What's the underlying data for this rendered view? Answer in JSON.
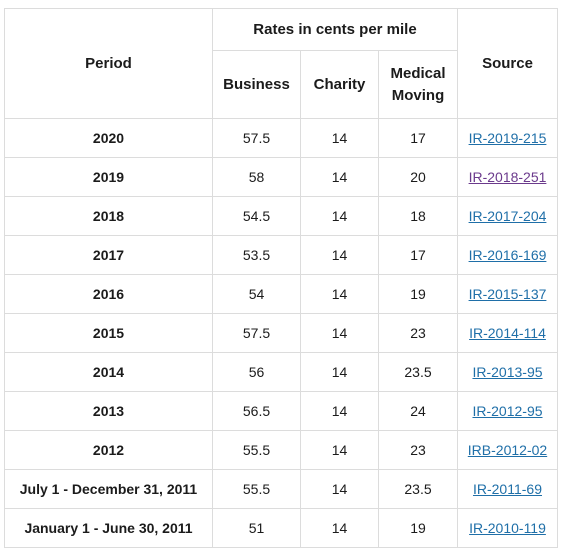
{
  "header": {
    "period": "Period",
    "rates_group": "Rates in cents per mile",
    "business": "Business",
    "charity": "Charity",
    "medical_line1": "Medical",
    "medical_line2": "Moving",
    "source": "Source"
  },
  "rows": [
    {
      "period": "2020",
      "business": "57.5",
      "charity": "14",
      "medical": "17",
      "source": "IR-2019-215",
      "visited": false
    },
    {
      "period": "2019",
      "business": "58",
      "charity": "14",
      "medical": "20",
      "source": "IR-2018-251",
      "visited": true
    },
    {
      "period": "2018",
      "business": "54.5",
      "charity": "14",
      "medical": "18",
      "source": "IR-2017-204",
      "visited": false
    },
    {
      "period": "2017",
      "business": "53.5",
      "charity": "14",
      "medical": "17",
      "source": "IR-2016-169",
      "visited": false
    },
    {
      "period": "2016",
      "business": "54",
      "charity": "14",
      "medical": "19",
      "source": "IR-2015-137",
      "visited": false
    },
    {
      "period": "2015",
      "business": "57.5",
      "charity": "14",
      "medical": "23",
      "source": "IR-2014-114",
      "visited": false
    },
    {
      "period": "2014",
      "business": "56",
      "charity": "14",
      "medical": "23.5",
      "source": "IR-2013-95",
      "visited": false
    },
    {
      "period": "2013",
      "business": "56.5",
      "charity": "14",
      "medical": "24",
      "source": "IR-2012-95",
      "visited": false
    },
    {
      "period": "2012",
      "business": "55.5",
      "charity": "14",
      "medical": "23",
      "source": "IRB-2012-02",
      "visited": false
    },
    {
      "period": "July 1 - December 31, 2011",
      "business": "55.5",
      "charity": "14",
      "medical": "23.5",
      "source": "IR-2011-69",
      "visited": false
    },
    {
      "period": "January 1 - June 30, 2011",
      "business": "51",
      "charity": "14",
      "medical": "19",
      "source": "IR-2010-119",
      "visited": false
    }
  ],
  "colors": {
    "link": "#1f6fa8",
    "visited_link": "#6b3a8c",
    "border": "#dcdcdc",
    "text": "#1b1b1b"
  }
}
